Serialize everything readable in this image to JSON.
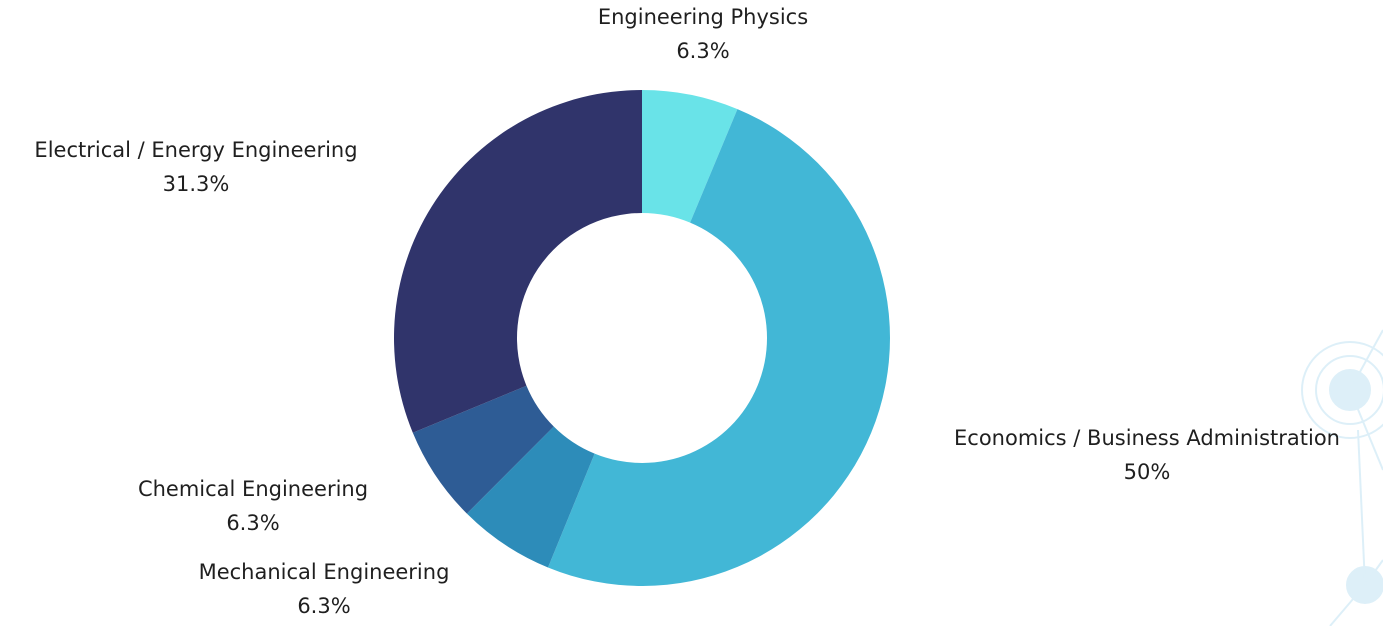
{
  "chart_data": {
    "type": "pie",
    "variant": "donut",
    "slices": [
      {
        "label": "Engineering Physics",
        "value": 6.3,
        "value_label": "6.3%",
        "color": "#69e3e8"
      },
      {
        "label": "Economics / Business Administration",
        "value": 50,
        "value_label": "50%",
        "color": "#42b7d6"
      },
      {
        "label": "Mechanical Engineering",
        "value": 6.3,
        "value_label": "6.3%",
        "color": "#2d8cb9"
      },
      {
        "label": "Chemical Engineering",
        "value": 6.3,
        "value_label": "6.3%",
        "color": "#2e5c95"
      },
      {
        "label": "Electrical / Energy Engineering",
        "value": 31.3,
        "value_label": "31.3%",
        "color": "#30346b"
      }
    ],
    "legend": "none",
    "labels": "outside"
  },
  "decoration": {
    "icon": "network-nodes-icon",
    "color": "#9fd4ec"
  }
}
